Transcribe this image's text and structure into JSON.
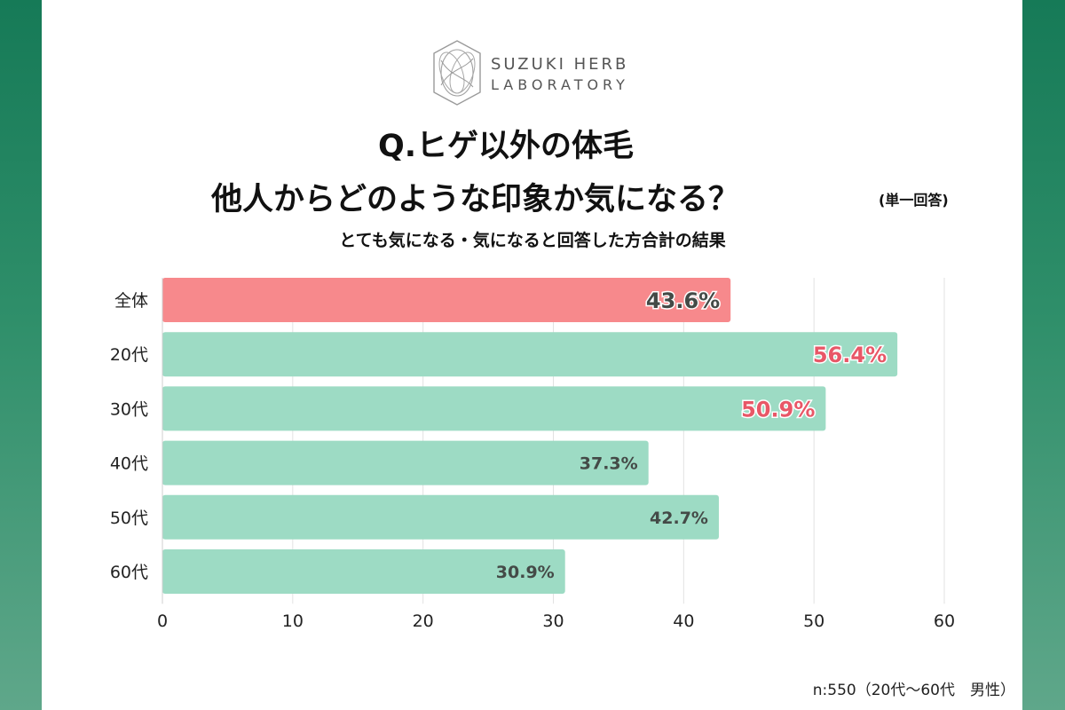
{
  "logo": {
    "line1": "SUZUKI HERB",
    "line2": "LABORATORY"
  },
  "title_line1": "Q.ヒゲ以外の体毛",
  "title_line2": "他人からどのような印象か気になる？",
  "title_note": "(単一回答)",
  "subtitle": "とても気になる・気になると回答した方合計の結果",
  "footnote": "n:550（20代〜60代　男性）",
  "colors": {
    "highlight_bar": "#f7898c",
    "bar": "#9ddbc4",
    "label_dark": "#444a47",
    "label_red": "#e85767",
    "stripe": "#167a57"
  },
  "chart_data": {
    "type": "bar",
    "orientation": "horizontal",
    "categories": [
      "全体",
      "20代",
      "30代",
      "40代",
      "50代",
      "60代"
    ],
    "values": [
      43.6,
      56.4,
      50.9,
      37.3,
      42.7,
      30.9
    ],
    "value_labels": [
      "43.6%",
      "56.4%",
      "50.9%",
      "37.3%",
      "42.7%",
      "30.9%"
    ],
    "highlight_category": "全体",
    "red_label_categories": [
      "20代",
      "30代"
    ],
    "xlim": [
      0,
      60
    ],
    "xticks": [
      0,
      10,
      20,
      30,
      40,
      50,
      60
    ],
    "grid": true
  }
}
